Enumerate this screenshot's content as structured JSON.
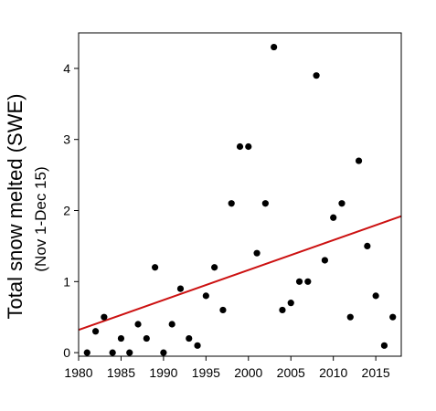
{
  "chart_data": {
    "type": "scatter",
    "title": "",
    "xlabel": "",
    "ylabel": "Total snow melted (SWE)",
    "ylabel_sub": "(Nov 1-Dec 15)",
    "xlim": [
      1980,
      2018
    ],
    "ylim": [
      -0.05,
      4.5
    ],
    "x_ticks": [
      1980,
      1985,
      1990,
      1995,
      2000,
      2005,
      2010,
      2015
    ],
    "y_ticks": [
      0,
      1,
      2,
      3,
      4
    ],
    "grid": false,
    "legend": "none",
    "marker_color": "#000000",
    "series": [
      {
        "x": [
          1981,
          1982,
          1983,
          1984,
          1985,
          1986,
          1987,
          1988,
          1989,
          1990,
          1991,
          1992,
          1993,
          1994,
          1995,
          1996,
          1997,
          1998,
          1999,
          2000,
          2001,
          2002,
          2003,
          2004,
          2005,
          2006,
          2007,
          2008,
          2009,
          2010,
          2011,
          2012,
          2013,
          2014,
          2015,
          2016,
          2017
        ],
        "y": [
          0.0,
          0.3,
          0.5,
          0.0,
          0.2,
          0.0,
          0.4,
          0.2,
          1.2,
          0.0,
          0.4,
          0.9,
          0.2,
          0.1,
          0.8,
          1.2,
          0.6,
          2.1,
          2.9,
          2.9,
          1.4,
          2.1,
          4.3,
          0.6,
          0.7,
          1.0,
          1.0,
          3.9,
          1.3,
          1.9,
          2.1,
          0.5,
          2.7,
          1.5,
          0.8,
          0.1,
          0.5
        ]
      }
    ],
    "trendline": {
      "type": "linear",
      "color": "#cc1111",
      "x": [
        1980,
        2018
      ],
      "y": [
        0.32,
        1.92
      ]
    }
  }
}
